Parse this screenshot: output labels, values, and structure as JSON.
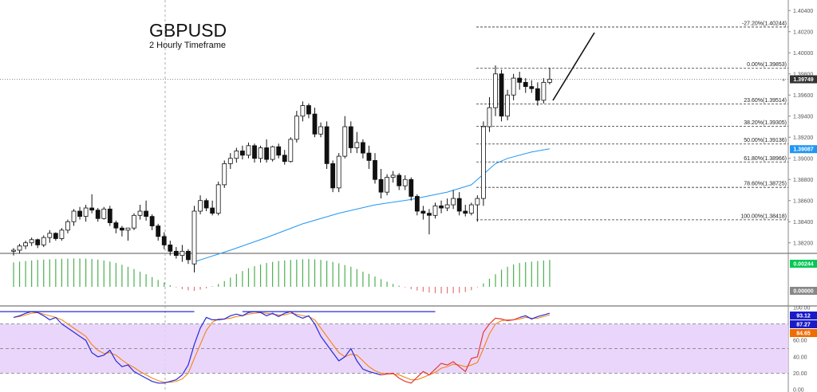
{
  "chart_data": {
    "type": "candlestick",
    "symbol": "GBPUSD",
    "timeframe": "2 Hourly Timeframe",
    "price_axis": {
      "ylim": [
        1.381,
        1.405
      ],
      "ticks": [
        "1.40400",
        "1.40200",
        "1.40000",
        "1.39800",
        "1.39600",
        "1.39400",
        "1.39200",
        "1.39000",
        "1.38800",
        "1.38600",
        "1.38400",
        "1.38200"
      ]
    },
    "current_price": {
      "label": "1.39749",
      "value": 1.39749,
      "color": "#333333"
    },
    "ma_price": {
      "label": "1.39087",
      "value": 1.39087,
      "color": "#2196f3"
    },
    "fibonacci": [
      {
        "label": "-27.20%(1.40244)",
        "value": 1.40244
      },
      {
        "label": "0.00%(1.39853)",
        "value": 1.39853
      },
      {
        "label": "23.60%(1.39514)",
        "value": 1.39514
      },
      {
        "label": "38.20%(1.39305)",
        "value": 1.39305
      },
      {
        "label": "50.00%(1.39136)",
        "value": 1.39136
      },
      {
        "label": "61.80%(1.38966)",
        "value": 1.38966
      },
      {
        "label": "78.60%(1.38725)",
        "value": 1.38725
      },
      {
        "label": "100.00%(1.38418)",
        "value": 1.38418
      }
    ],
    "candles": [
      [
        1.3812,
        1.3815,
        1.3808,
        1.3813
      ],
      [
        1.3813,
        1.3819,
        1.381,
        1.3817
      ],
      [
        1.3817,
        1.3822,
        1.3814,
        1.382
      ],
      [
        1.382,
        1.3825,
        1.3817,
        1.3823
      ],
      [
        1.3823,
        1.3824,
        1.3815,
        1.3818
      ],
      [
        1.3818,
        1.3827,
        1.3816,
        1.3825
      ],
      [
        1.3825,
        1.3832,
        1.382,
        1.3829
      ],
      [
        1.3829,
        1.383,
        1.3822,
        1.3824
      ],
      [
        1.3824,
        1.3834,
        1.3822,
        1.3832
      ],
      [
        1.3832,
        1.3842,
        1.3829,
        1.384
      ],
      [
        1.384,
        1.3852,
        1.3836,
        1.385
      ],
      [
        1.385,
        1.3854,
        1.3842,
        1.3845
      ],
      [
        1.3845,
        1.3856,
        1.384,
        1.3853
      ],
      [
        1.3853,
        1.3866,
        1.3848,
        1.3851
      ],
      [
        1.3851,
        1.3853,
        1.384,
        1.3843
      ],
      [
        1.3843,
        1.3854,
        1.3842,
        1.3852
      ],
      [
        1.3852,
        1.3855,
        1.3836,
        1.3839
      ],
      [
        1.3839,
        1.3841,
        1.3829,
        1.3834
      ],
      [
        1.3834,
        1.3836,
        1.3826,
        1.3832
      ],
      [
        1.3832,
        1.3834,
        1.3822,
        1.3834
      ],
      [
        1.3834,
        1.3848,
        1.3832,
        1.3846
      ],
      [
        1.3846,
        1.3856,
        1.3842,
        1.385
      ],
      [
        1.385,
        1.386,
        1.3841,
        1.3845
      ],
      [
        1.3845,
        1.3847,
        1.3832,
        1.3836
      ],
      [
        1.3836,
        1.3838,
        1.3822,
        1.3826
      ],
      [
        1.3826,
        1.383,
        1.3814,
        1.3818
      ],
      [
        1.3818,
        1.3822,
        1.3808,
        1.3812
      ],
      [
        1.3812,
        1.3816,
        1.3805,
        1.3808
      ],
      [
        1.3808,
        1.3818,
        1.3802,
        1.3812
      ],
      [
        1.3812,
        1.3814,
        1.38,
        1.3804
      ],
      [
        1.38,
        1.3855,
        1.3792,
        1.385
      ],
      [
        1.385,
        1.3865,
        1.3847,
        1.386
      ],
      [
        1.386,
        1.3862,
        1.385,
        1.3853
      ],
      [
        1.3853,
        1.386,
        1.3846,
        1.3848
      ],
      [
        1.3848,
        1.3878,
        1.3846,
        1.3875
      ],
      [
        1.3875,
        1.3898,
        1.3872,
        1.3895
      ],
      [
        1.3895,
        1.3905,
        1.389,
        1.39
      ],
      [
        1.39,
        1.391,
        1.3896,
        1.3907
      ],
      [
        1.3907,
        1.3912,
        1.3899,
        1.3903
      ],
      [
        1.3903,
        1.3915,
        1.39,
        1.3912
      ],
      [
        1.3912,
        1.3914,
        1.3896,
        1.39
      ],
      [
        1.39,
        1.3912,
        1.3896,
        1.391
      ],
      [
        1.391,
        1.3918,
        1.3896,
        1.3899
      ],
      [
        1.3899,
        1.3912,
        1.3897,
        1.3911
      ],
      [
        1.3911,
        1.3914,
        1.39,
        1.3903
      ],
      [
        1.3903,
        1.3908,
        1.3894,
        1.3897
      ],
      [
        1.3897,
        1.392,
        1.3896,
        1.3918
      ],
      [
        1.3918,
        1.3945,
        1.3915,
        1.394
      ],
      [
        1.394,
        1.3954,
        1.3935,
        1.395
      ],
      [
        1.395,
        1.3952,
        1.3938,
        1.3942
      ],
      [
        1.3942,
        1.3948,
        1.392,
        1.3923
      ],
      [
        1.3923,
        1.3934,
        1.392,
        1.393
      ],
      [
        1.393,
        1.3935,
        1.389,
        1.3895
      ],
      [
        1.3895,
        1.3898,
        1.3868,
        1.3872
      ],
      [
        1.3872,
        1.3905,
        1.3868,
        1.3902
      ],
      [
        1.3902,
        1.394,
        1.39,
        1.393
      ],
      [
        1.393,
        1.3935,
        1.3905,
        1.391
      ],
      [
        1.391,
        1.3925,
        1.3905,
        1.3915
      ],
      [
        1.3915,
        1.3918,
        1.39,
        1.3905
      ],
      [
        1.3905,
        1.3912,
        1.389,
        1.3898
      ],
      [
        1.3898,
        1.3905,
        1.3876,
        1.388
      ],
      [
        1.388,
        1.389,
        1.3862,
        1.3868
      ],
      [
        1.3868,
        1.3885,
        1.3865,
        1.3882
      ],
      [
        1.3882,
        1.3888,
        1.3877,
        1.3884
      ],
      [
        1.3884,
        1.3886,
        1.387,
        1.3874
      ],
      [
        1.3874,
        1.3884,
        1.387,
        1.388
      ],
      [
        1.388,
        1.3882,
        1.386,
        1.3864
      ],
      [
        1.3864,
        1.3866,
        1.3846,
        1.385
      ],
      [
        1.385,
        1.3855,
        1.3842,
        1.3848
      ],
      [
        1.3848,
        1.3852,
        1.3828,
        1.3846
      ],
      [
        1.3846,
        1.3858,
        1.3843,
        1.3855
      ],
      [
        1.3855,
        1.386,
        1.3848,
        1.3853
      ],
      [
        1.3853,
        1.3862,
        1.385,
        1.3856
      ],
      [
        1.3856,
        1.387,
        1.3852,
        1.3862
      ],
      [
        1.3862,
        1.3868,
        1.3846,
        1.385
      ],
      [
        1.385,
        1.3856,
        1.3845,
        1.3848
      ],
      [
        1.3848,
        1.3858,
        1.3846,
        1.3856
      ],
      [
        1.3856,
        1.3865,
        1.384,
        1.3862
      ],
      [
        1.3862,
        1.3935,
        1.3855,
        1.393
      ],
      [
        1.393,
        1.3958,
        1.3925,
        1.3948
      ],
      [
        1.3948,
        1.3988,
        1.394,
        1.398
      ],
      [
        1.398,
        1.3984,
        1.3935,
        1.394
      ],
      [
        1.394,
        1.3965,
        1.3936,
        1.396
      ],
      [
        1.396,
        1.398,
        1.3955,
        1.3976
      ],
      [
        1.3976,
        1.3982,
        1.3965,
        1.3972
      ],
      [
        1.3972,
        1.3976,
        1.3962,
        1.3968
      ],
      [
        1.3968,
        1.3974,
        1.3962,
        1.3966
      ],
      [
        1.3966,
        1.3972,
        1.395,
        1.3955
      ],
      [
        1.3955,
        1.3976,
        1.3952,
        1.3972
      ],
      [
        1.3972,
        1.3986,
        1.397,
        1.3975
      ]
    ],
    "moving_average": [
      [
        30,
        1.3802
      ],
      [
        36,
        1.3813
      ],
      [
        42,
        1.3825
      ],
      [
        48,
        1.3838
      ],
      [
        54,
        1.3848
      ],
      [
        60,
        1.3856
      ],
      [
        66,
        1.3861
      ],
      [
        72,
        1.3868
      ],
      [
        76,
        1.3875
      ],
      [
        78,
        1.3885
      ],
      [
        80,
        1.3895
      ],
      [
        82,
        1.39
      ],
      [
        86,
        1.3906
      ],
      [
        89,
        1.3909
      ]
    ],
    "oscillator": {
      "labels": [
        "0.00244",
        "0.00000"
      ],
      "colors": {
        "positive": "#4caf50",
        "positive_badge": "#00c853",
        "negative": "#e57373",
        "zero_badge": "#888888"
      },
      "histogram": [
        0.00085,
        0.00088,
        0.0009,
        0.00092,
        0.00094,
        0.00095,
        0.00096,
        0.00097,
        0.00098,
        0.00098,
        0.00099,
        0.00099,
        0.00098,
        0.00097,
        0.00095,
        0.00092,
        0.00088,
        0.00083,
        0.00077,
        0.0007,
        0.00062,
        0.00053,
        0.00044,
        0.00034,
        0.00024,
        0.00015,
        6e-05,
        -2e-05,
        -8e-05,
        -0.00012,
        -0.00014,
        -0.0001,
        -5e-05,
        2e-05,
        0.0001,
        0.0002,
        0.00032,
        0.00045,
        0.00055,
        0.00065,
        0.00072,
        0.00078,
        0.00083,
        0.00087,
        0.0009,
        0.00092,
        0.00094,
        0.00095,
        0.00096,
        0.00097,
        0.00096,
        0.00094,
        0.00091,
        0.00087,
        0.00082,
        0.00076,
        0.0007,
        0.00062,
        0.00053,
        0.00045,
        0.00036,
        0.00027,
        0.00018,
        0.0001,
        4e-05,
        -2e-05,
        -8e-05,
        -0.00013,
        -0.00017,
        -0.0002,
        -0.00022,
        -0.00023,
        -0.00023,
        -0.00022,
        -0.00021,
        -0.00018,
        -0.00012,
        -2e-05,
        0.00012,
        0.00028,
        0.00044,
        0.0006,
        0.0007,
        0.00078,
        0.00083,
        0.00086,
        0.00088,
        0.0009,
        0.00092,
        0.00094
      ]
    },
    "stochastic": {
      "ylim": [
        0,
        100
      ],
      "ticks": [
        "100.00",
        "80.00",
        "60.00",
        "40.00",
        "20.00",
        "0.00"
      ],
      "labels": [
        "93.12",
        "87.27",
        "84.65"
      ],
      "colors": {
        "k_line": "#2a2ad8",
        "k_overbought": "#e53935",
        "d_line": "#f57c00",
        "band": "#e6cffa",
        "badge_k": "#1a1ac8",
        "badge_d": "#ef6c00"
      },
      "k": [
        88,
        90,
        93,
        95,
        94,
        90,
        85,
        88,
        80,
        75,
        70,
        65,
        60,
        45,
        40,
        42,
        48,
        35,
        28,
        30,
        22,
        18,
        14,
        10,
        8,
        8,
        10,
        12,
        18,
        30,
        55,
        75,
        88,
        85,
        85,
        86,
        90,
        92,
        90,
        94,
        95,
        94,
        90,
        93,
        89,
        93,
        95,
        90,
        87,
        90,
        80,
        65,
        55,
        45,
        35,
        40,
        50,
        35,
        25,
        22,
        20,
        18,
        19,
        20,
        14,
        10,
        8,
        15,
        22,
        18,
        25,
        32,
        30,
        34,
        28,
        22,
        38,
        40,
        70,
        80,
        87,
        86,
        84,
        85,
        88,
        90,
        86,
        89,
        91,
        93
      ],
      "d": [
        88,
        89,
        91,
        93,
        94,
        92,
        90,
        88,
        85,
        80,
        75,
        70,
        65,
        55,
        48,
        44,
        45,
        42,
        36,
        31,
        27,
        22,
        18,
        14,
        11,
        9,
        9,
        10,
        13,
        20,
        38,
        55,
        72,
        82,
        86,
        86,
        87,
        89,
        90,
        92,
        93,
        94,
        93,
        92,
        91,
        91,
        93,
        92,
        90,
        89,
        85,
        75,
        65,
        55,
        45,
        40,
        43,
        42,
        35,
        28,
        23,
        20,
        19,
        19,
        18,
        15,
        12,
        12,
        15,
        18,
        21,
        26,
        28,
        31,
        30,
        28,
        30,
        33,
        50,
        68,
        80,
        84,
        85,
        85,
        86,
        88,
        87,
        87,
        89,
        91
      ],
      "k_overbought_range": [
        61,
        84
      ],
      "blue_k_note": "",
      "d_flat_high": 95
    },
    "time_axis": {
      "ticks": []
    }
  }
}
